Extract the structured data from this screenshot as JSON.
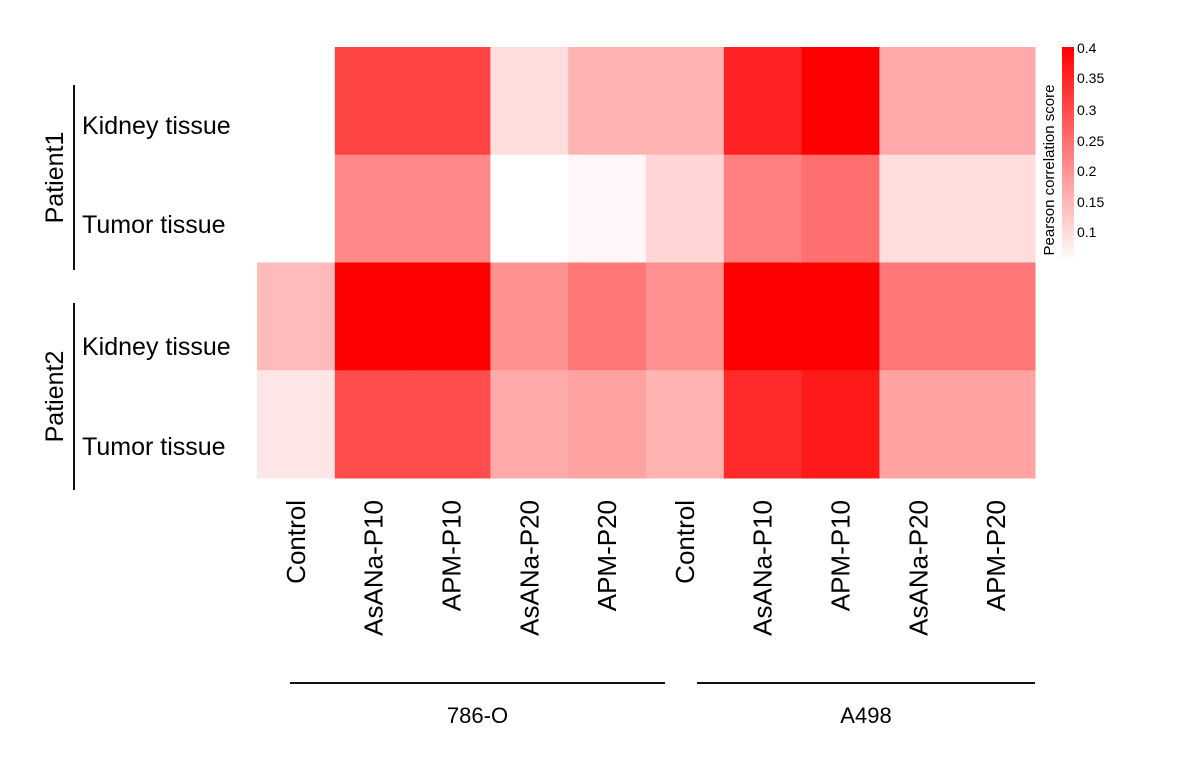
{
  "chart_data": {
    "type": "heatmap",
    "row_groups": [
      {
        "name": "Patient1",
        "rows": [
          "Kidney tissue",
          "Tumor tissue"
        ]
      },
      {
        "name": "Patient2",
        "rows": [
          "Kidney tissue",
          "Tumor tissue"
        ]
      }
    ],
    "column_groups": [
      {
        "name": "786-O",
        "columns": [
          "Control",
          "AsANa-P10",
          "APM-P10",
          "AsANa-P20",
          "APM-P20"
        ]
      },
      {
        "name": "A498",
        "columns": [
          "Control",
          "AsANa-P10",
          "APM-P10",
          "AsANa-P20",
          "APM-P20"
        ]
      }
    ],
    "values": [
      [
        0.07,
        0.32,
        0.32,
        0.14,
        0.19,
        0.19,
        0.36,
        0.4,
        0.2,
        0.2
      ],
      [
        0.06,
        0.24,
        0.24,
        0.07,
        0.11,
        0.15,
        0.25,
        0.27,
        0.14,
        0.14
      ],
      [
        0.18,
        0.4,
        0.4,
        0.23,
        0.26,
        0.23,
        0.41,
        0.43,
        0.26,
        0.26
      ],
      [
        0.13,
        0.31,
        0.31,
        0.2,
        0.21,
        0.19,
        0.35,
        0.37,
        0.21,
        0.21
      ]
    ],
    "colorbar": {
      "title": "Pearson correlation score",
      "ticks": [
        "0.4",
        "0.35",
        "0.3",
        "0.25",
        "0.2",
        "0.15",
        "0.1"
      ],
      "range": [
        0.1,
        0.4
      ],
      "low_color": "#ffffff",
      "high_color": "#ff0000"
    }
  }
}
